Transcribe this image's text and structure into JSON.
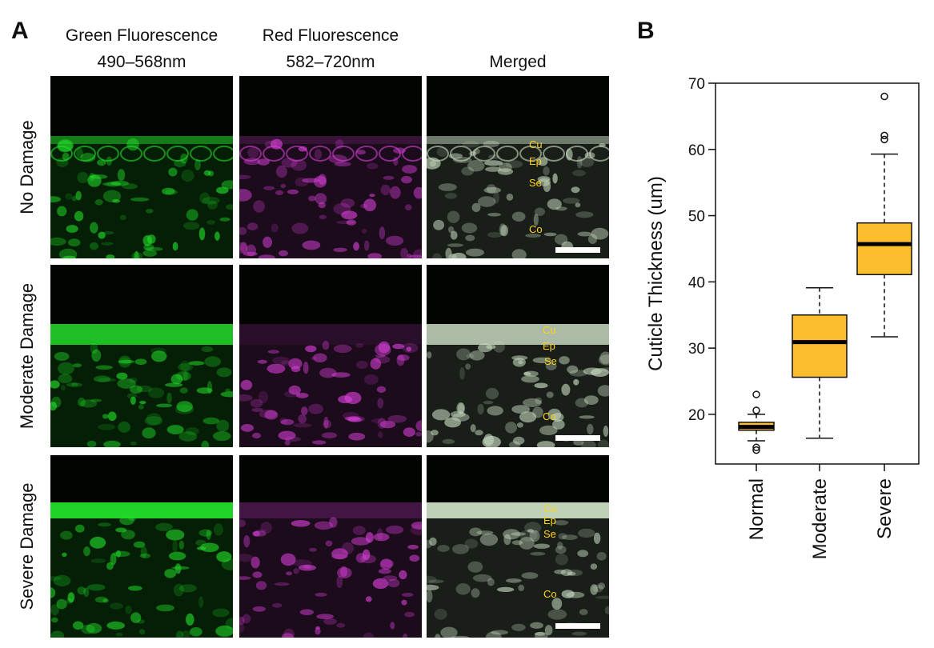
{
  "panel_a": {
    "letter": "A",
    "columns": [
      {
        "line1": "Green Fluorescence",
        "line2": "490–568nm",
        "tone": "green"
      },
      {
        "line1": "Red Fluorescence",
        "line2": "582–720nm",
        "tone": "magenta"
      },
      {
        "line1": "",
        "line2": "Merged",
        "tone": "merged"
      }
    ],
    "rows": [
      {
        "label": "No Damage",
        "damage": 0
      },
      {
        "label": "Moderate Damage",
        "damage": 1
      },
      {
        "label": "Severe Damage",
        "damage": 2
      }
    ],
    "region_labels": [
      "Cu",
      "Ep",
      "Se",
      "Co"
    ],
    "colors": {
      "green": "#22e02a",
      "magenta": "#d93fd9",
      "merged": "#c9dcc2",
      "label": "#ffd21a"
    }
  },
  "panel_b": {
    "letter": "B"
  },
  "chart_data": {
    "type": "box",
    "categories": [
      "Normal",
      "Moderate",
      "Severe"
    ],
    "ylabel": "Cuticle Thickness (um)",
    "xlabel": "",
    "ylim": [
      12.5,
      70
    ],
    "yticks": [
      20,
      30,
      40,
      50,
      60,
      70
    ],
    "box_color": "#fdbe2d",
    "series": [
      {
        "category": "Normal",
        "whisker_low": 16.0,
        "q1": 17.6,
        "median": 18.1,
        "q3": 18.8,
        "whisker_high": 20.0,
        "outliers": [
          14.6,
          15.0,
          20.6,
          23.0
        ]
      },
      {
        "category": "Moderate",
        "whisker_low": 16.4,
        "q1": 25.6,
        "median": 30.9,
        "q3": 35.0,
        "whisker_high": 39.1,
        "outliers": []
      },
      {
        "category": "Severe",
        "whisker_low": 31.7,
        "q1": 41.1,
        "median": 45.7,
        "q3": 48.9,
        "whisker_high": 59.3,
        "outliers": [
          61.5,
          62.1,
          68.0
        ]
      }
    ]
  }
}
